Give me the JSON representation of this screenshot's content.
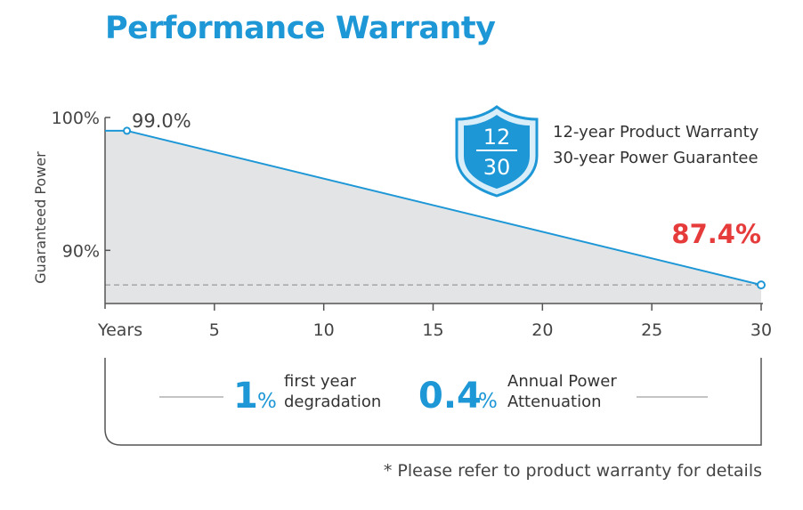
{
  "title": "Performance Warranty",
  "footnote": "* Please refer to product warranty for details",
  "colors": {
    "accent": "#1d97d6",
    "highlight": "#e63b3b",
    "area": "#e3e4e6",
    "axis": "#555555",
    "text": "#444444"
  },
  "badge": {
    "icon": "shield-icon",
    "top": "12",
    "bottom": "30",
    "lines": [
      "12-year Product  Warranty",
      "30-year Power Guarantee"
    ]
  },
  "stats": [
    {
      "big": "1",
      "unit": "%",
      "line1": "first year",
      "line2": "degradation"
    },
    {
      "big": "0.4",
      "unit": "%",
      "line1": "Annual Power",
      "line2": "Attenuation"
    }
  ],
  "chart_data": {
    "type": "area",
    "ylabel": "Guaranteed Power",
    "xlabel": "Years",
    "x": [
      1,
      30
    ],
    "y": [
      99.0,
      87.4
    ],
    "xlim": [
      0,
      30
    ],
    "ylim": [
      86,
      100
    ],
    "xticks": [
      5,
      10,
      15,
      20,
      25,
      30
    ],
    "yticks": [
      100,
      90
    ],
    "ytick_labels": [
      "100%",
      "90%"
    ],
    "point_labels": [
      "99.0%",
      "87.4%"
    ],
    "reference_line": 87.4
  }
}
